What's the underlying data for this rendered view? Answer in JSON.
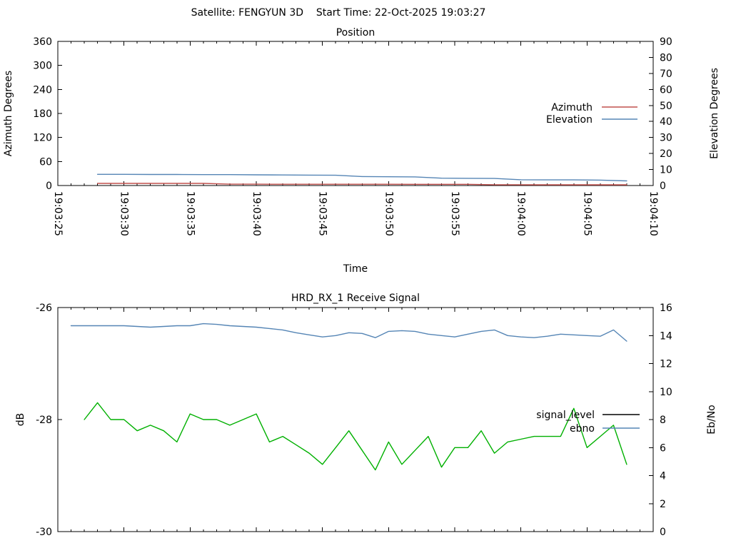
{
  "header": {
    "title": "Satellite: FENGYUN 3D    Start Time: 22-Oct-2025 19:03:27"
  },
  "chart_data": [
    {
      "type": "line",
      "title": "Position",
      "xlabel": "Time",
      "ylabel": "Azimuth Degrees",
      "y2label": "Elevation Degrees",
      "x_start": "19:03:25",
      "x_end": "19:04:10",
      "x_major_interval_s": 5,
      "x_minor_interval_s": 1,
      "x_labels_visible": true,
      "x_tick_labels": [
        "19:03:25",
        "19:03:30",
        "19:03:35",
        "19:03:40",
        "19:03:45",
        "19:03:50",
        "19:03:55",
        "19:04:00",
        "19:04:05",
        "19:04:10"
      ],
      "ylim": [
        0,
        360
      ],
      "yticks": [
        0,
        60,
        120,
        180,
        240,
        300,
        360
      ],
      "y2lim": [
        0,
        90
      ],
      "y2ticks": [
        0,
        10,
        20,
        30,
        40,
        50,
        60,
        70,
        80,
        90
      ],
      "grid": false,
      "legend_position": "right-middle",
      "series": [
        {
          "name": "Azimuth",
          "axis": "y1",
          "color": "#c0504d",
          "legend_color": "#c0504d",
          "times": [
            "19:03:28",
            "19:03:30",
            "19:03:32",
            "19:03:34",
            "19:03:36",
            "19:03:38",
            "19:03:40",
            "19:03:42",
            "19:03:44",
            "19:03:46",
            "19:03:48",
            "19:03:50",
            "19:03:52",
            "19:03:54",
            "19:03:56",
            "19:03:58",
            "19:04:00",
            "19:04:02",
            "19:04:04",
            "19:04:06",
            "19:04:08"
          ],
          "values": [
            5.4,
            5.4,
            5.3,
            5.3,
            5.3,
            3.3,
            3.3,
            3.2,
            3.2,
            3.2,
            3.2,
            3.2,
            3.1,
            3.1,
            3.1,
            1.9,
            1.9,
            1.8,
            1.8,
            1.8,
            1.8
          ]
        },
        {
          "name": "Elevation",
          "axis": "y2",
          "color": "#5585b5",
          "legend_color": "#5585b5",
          "times": [
            "19:03:28",
            "19:03:30",
            "19:03:32",
            "19:03:34",
            "19:03:36",
            "19:03:38",
            "19:03:40",
            "19:03:42",
            "19:03:44",
            "19:03:46",
            "19:03:48",
            "19:03:50",
            "19:03:52",
            "19:03:54",
            "19:03:56",
            "19:03:58",
            "19:04:00",
            "19:04:02",
            "19:04:04",
            "19:04:06",
            "19:04:08"
          ],
          "values": [
            7.0,
            7.0,
            6.9,
            6.9,
            6.8,
            6.8,
            6.7,
            6.6,
            6.5,
            6.4,
            5.6,
            5.5,
            5.4,
            4.6,
            4.5,
            4.4,
            3.6,
            3.5,
            3.5,
            3.4,
            2.9
          ]
        }
      ]
    },
    {
      "type": "line",
      "title": "HRD_RX_1 Receive Signal",
      "xlabel": "",
      "ylabel": "dB",
      "y2label": "Eb/No",
      "x_start": "19:03:25",
      "x_end": "19:04:10",
      "x_major_interval_s": 5,
      "x_minor_interval_s": 1,
      "x_labels_visible": false,
      "x_tick_labels": [],
      "ylim": [
        -30,
        -26
      ],
      "yticks": [
        -30,
        -28,
        -26
      ],
      "y2lim": [
        0,
        16
      ],
      "y2ticks": [
        0,
        2,
        4,
        6,
        8,
        10,
        12,
        14,
        16
      ],
      "grid": false,
      "legend_position": "right-middle",
      "series": [
        {
          "name": "signal_level",
          "axis": "y1",
          "color": "#00b000",
          "legend_color": "#000000",
          "times": [
            "19:03:27",
            "19:03:28",
            "19:03:29",
            "19:03:30",
            "19:03:31",
            "19:03:32",
            "19:03:33",
            "19:03:34",
            "19:03:35",
            "19:03:36",
            "19:03:37",
            "19:03:38",
            "19:03:39",
            "19:03:40",
            "19:03:41",
            "19:03:42",
            "19:03:43",
            "19:03:44",
            "19:03:45",
            "19:03:46",
            "19:03:47",
            "19:03:48",
            "19:03:49",
            "19:03:50",
            "19:03:51",
            "19:03:52",
            "19:03:53",
            "19:03:54",
            "19:03:55",
            "19:03:56",
            "19:03:57",
            "19:03:58",
            "19:03:59",
            "19:04:00",
            "19:04:01",
            "19:04:02",
            "19:04:03",
            "19:04:04",
            "19:04:05",
            "19:04:06",
            "19:04:07",
            "19:04:08"
          ],
          "values": [
            -28.0,
            -27.7,
            -28.0,
            -28.0,
            -28.2,
            -28.1,
            -28.2,
            -28.4,
            -27.9,
            -28.0,
            -28.0,
            -28.1,
            -28.0,
            -27.9,
            -28.4,
            -28.3,
            -28.45,
            -28.6,
            -28.8,
            -28.5,
            -28.2,
            -28.55,
            -28.9,
            -28.4,
            -28.8,
            -28.55,
            -28.3,
            -28.85,
            -28.5,
            -28.5,
            -28.2,
            -28.6,
            -28.4,
            -28.35,
            -28.3,
            -28.3,
            -28.3,
            -27.8,
            -28.5,
            -28.3,
            -28.1,
            -28.8
          ]
        },
        {
          "name": "ebno",
          "axis": "y2",
          "color": "#5585b5",
          "legend_color": "#5585b5",
          "times": [
            "19:03:26",
            "19:03:27",
            "19:03:28",
            "19:03:29",
            "19:03:30",
            "19:03:31",
            "19:03:32",
            "19:03:33",
            "19:03:34",
            "19:03:35",
            "19:03:36",
            "19:03:37",
            "19:03:38",
            "19:03:39",
            "19:03:40",
            "19:03:41",
            "19:03:42",
            "19:03:43",
            "19:03:44",
            "19:03:45",
            "19:03:46",
            "19:03:47",
            "19:03:48",
            "19:03:49",
            "19:03:50",
            "19:03:51",
            "19:03:52",
            "19:03:53",
            "19:03:54",
            "19:03:55",
            "19:03:56",
            "19:03:57",
            "19:03:58",
            "19:03:59",
            "19:04:00",
            "19:04:01",
            "19:04:02",
            "19:04:03",
            "19:04:04",
            "19:04:05",
            "19:04:06",
            "19:04:07",
            "19:04:08"
          ],
          "values": [
            14.7,
            14.7,
            14.7,
            14.7,
            14.7,
            14.65,
            14.6,
            14.65,
            14.7,
            14.7,
            14.85,
            14.8,
            14.7,
            14.65,
            14.6,
            14.5,
            14.4,
            14.2,
            14.05,
            13.9,
            14.0,
            14.2,
            14.15,
            13.85,
            14.3,
            14.35,
            14.3,
            14.1,
            14.0,
            13.9,
            14.1,
            14.3,
            14.4,
            14.0,
            13.9,
            13.85,
            13.95,
            14.1,
            14.05,
            14.0,
            13.95,
            14.4,
            13.6
          ]
        }
      ]
    }
  ]
}
